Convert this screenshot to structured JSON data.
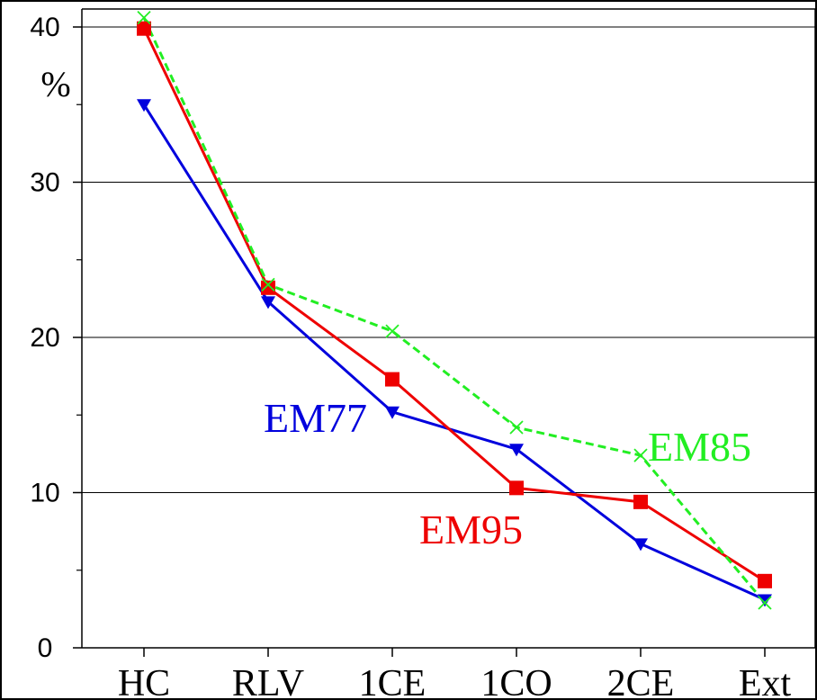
{
  "chart_data": {
    "type": "line",
    "categories": [
      "HC",
      "RLV",
      "1CE",
      "1CO",
      "2CE",
      "Ext"
    ],
    "ylabel": "%",
    "ylim": [
      0,
      40
    ],
    "yticks": [
      0,
      10,
      20,
      30,
      40
    ],
    "grid": true,
    "series": [
      {
        "name": "EM77",
        "color": "#0000dd",
        "marker": "triangle-down",
        "line": "solid",
        "values": [
          35.0,
          22.3,
          15.2,
          12.8,
          6.7,
          3.1
        ]
      },
      {
        "name": "EM95",
        "color": "#ee0000",
        "marker": "square",
        "line": "solid",
        "values": [
          39.9,
          23.2,
          17.3,
          10.3,
          9.4,
          4.3
        ]
      },
      {
        "name": "EM85",
        "color": "#22ee22",
        "marker": "x",
        "line": "dashed",
        "values": [
          40.6,
          23.4,
          20.4,
          14.2,
          12.4,
          2.9
        ]
      }
    ]
  }
}
